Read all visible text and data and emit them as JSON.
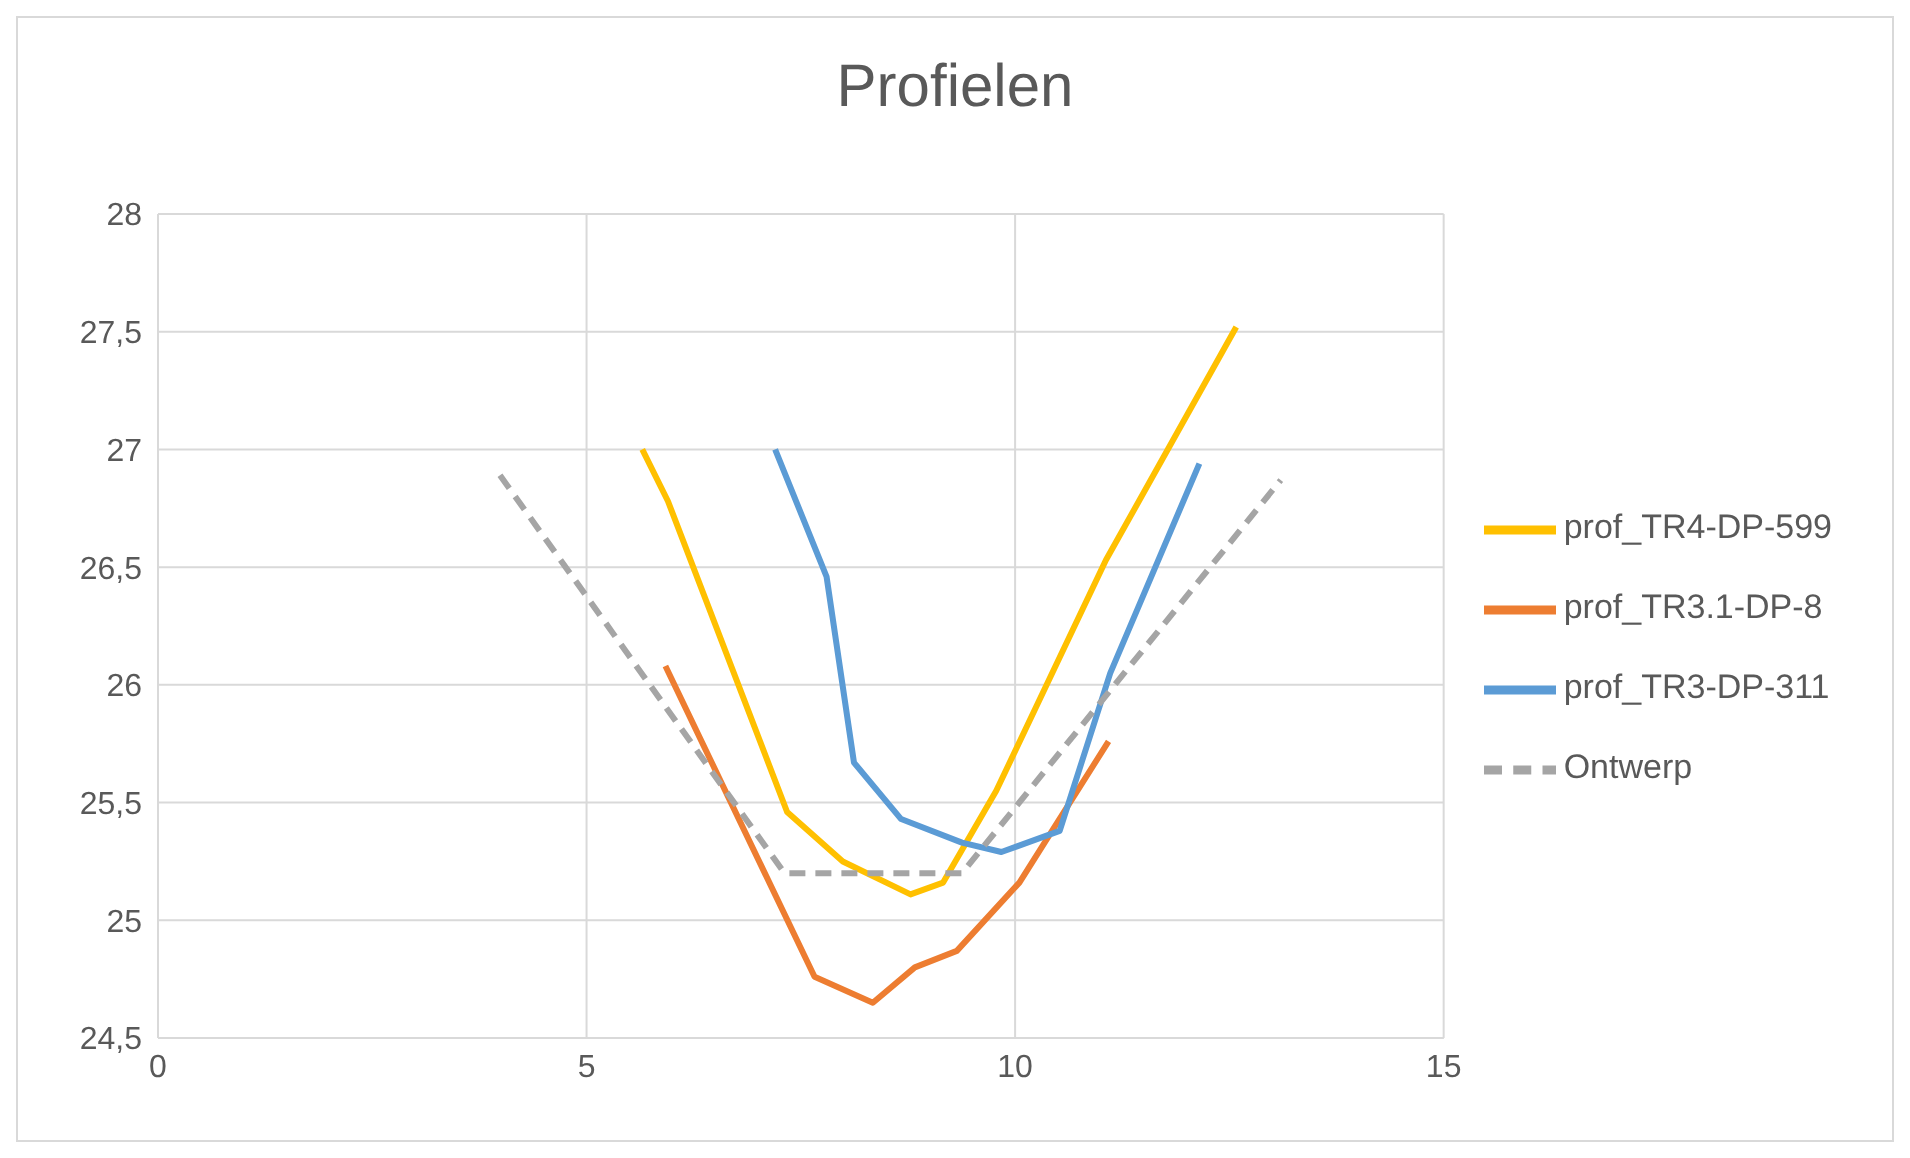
{
  "chart_data": {
    "type": "line",
    "title": "Profielen",
    "xlim": [
      0,
      15
    ],
    "xticks": [
      0,
      5,
      10,
      15
    ],
    "ylim": [
      24.5,
      28
    ],
    "yticks": [
      {
        "value": 24.5,
        "label": "24,5"
      },
      {
        "value": 25,
        "label": "25"
      },
      {
        "value": 25.5,
        "label": "25,5"
      },
      {
        "value": 26,
        "label": "26"
      },
      {
        "value": 26.5,
        "label": "26,5"
      },
      {
        "value": 27,
        "label": "27"
      },
      {
        "value": 27.5,
        "label": "27,5"
      },
      {
        "value": 28,
        "label": "28"
      }
    ],
    "grid": true,
    "legend": "right",
    "marker": "none",
    "series": [
      {
        "name": "prof_TR4-DP-599",
        "color": "#ffc000",
        "line_style": "solid",
        "x": [
          5.65,
          5.95,
          7.34,
          7.99,
          8.78,
          9.16,
          9.78,
          11.06,
          12.58
        ],
        "values": [
          27,
          26.78,
          25.46,
          25.25,
          25.11,
          25.16,
          25.55,
          26.53,
          27.52
        ]
      },
      {
        "name": "prof_TR3.1-DP-8",
        "color": "#ed7d31",
        "line_style": "solid",
        "x": [
          5.92,
          7.66,
          8.34,
          8.83,
          9.32,
          10.05,
          11.09
        ],
        "values": [
          26.08,
          24.76,
          24.65,
          24.8,
          24.87,
          25.16,
          25.76
        ]
      },
      {
        "name": "prof_TR3-DP-311",
        "color": "#5b9bd5",
        "line_style": "solid",
        "x": [
          7.2,
          7.8,
          8.12,
          8.67,
          9.38,
          9.84,
          10.52,
          11.11,
          12.15
        ],
        "values": [
          27,
          26.46,
          25.67,
          25.43,
          25.33,
          25.29,
          25.38,
          26.05,
          26.94
        ]
      },
      {
        "name": "Ontwerp",
        "color": "#a5a5a5",
        "line_style": "dashed",
        "x": [
          3.99,
          7.31,
          9.38,
          13.1
        ],
        "values": [
          26.89,
          25.2,
          25.2,
          26.87
        ]
      }
    ]
  }
}
